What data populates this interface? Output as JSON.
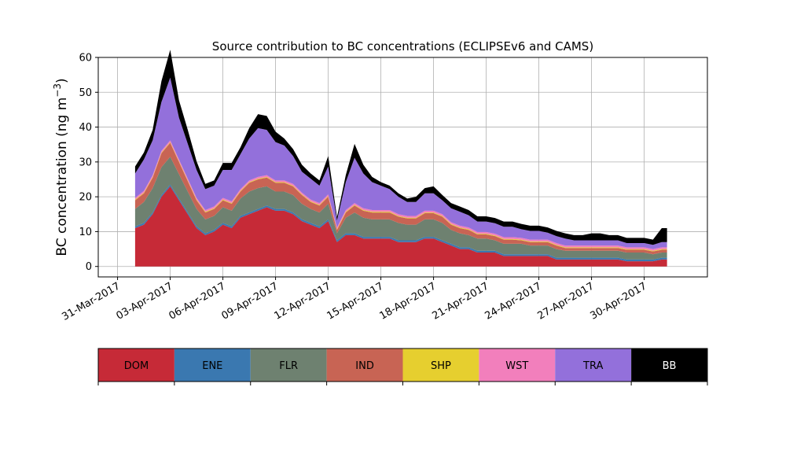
{
  "chart_data": {
    "type": "area",
    "stacked": true,
    "title": "Source contribution to BC concentrations (ECLIPSEv6 and CAMS)",
    "xlabel": "",
    "ylabel": "BC concentration (ng m",
    "ylabel_superscript": "−3",
    "ylabel_suffix": ")",
    "ylim": [
      -3,
      60
    ],
    "xlim": [
      -1.1,
      33.6
    ],
    "grid": true,
    "yticks": [
      0,
      10,
      20,
      30,
      40,
      50,
      60
    ],
    "xticks": [
      {
        "day": 0,
        "label": "31-Mar-2017"
      },
      {
        "day": 3,
        "label": "03-Apr-2017"
      },
      {
        "day": 6,
        "label": "06-Apr-2017"
      },
      {
        "day": 9,
        "label": "09-Apr-2017"
      },
      {
        "day": 12,
        "label": "12-Apr-2017"
      },
      {
        "day": 15,
        "label": "15-Apr-2017"
      },
      {
        "day": 18,
        "label": "18-Apr-2017"
      },
      {
        "day": 21,
        "label": "21-Apr-2017"
      },
      {
        "day": 24,
        "label": "24-Apr-2017"
      },
      {
        "day": 27,
        "label": "27-Apr-2017"
      },
      {
        "day": 30,
        "label": "30-Apr-2017"
      }
    ],
    "x_days": [
      1.0,
      1.5,
      2.0,
      2.5,
      3.0,
      3.5,
      4.0,
      4.5,
      5.0,
      5.5,
      6.0,
      6.5,
      7.0,
      7.5,
      8.0,
      8.5,
      9.0,
      9.5,
      10.0,
      10.5,
      11.0,
      11.5,
      12.0,
      12.5,
      13.0,
      13.5,
      14.0,
      14.5,
      15.0,
      15.5,
      16.0,
      16.5,
      17.0,
      17.5,
      18.0,
      18.5,
      19.0,
      19.5,
      20.0,
      20.5,
      21.0,
      21.5,
      22.0,
      22.5,
      23.0,
      23.5,
      24.0,
      24.5,
      25.0,
      25.5,
      26.0,
      26.5,
      27.0,
      27.5,
      28.0,
      28.5,
      29.0,
      29.5,
      30.0,
      30.5,
      31.0,
      31.3
    ],
    "series": [
      {
        "name": "DOM",
        "color": "#c62a37",
        "values": [
          11,
          12,
          15,
          20,
          23,
          19,
          15,
          11,
          9,
          10,
          12,
          11,
          14,
          15,
          16,
          17,
          16,
          16,
          15,
          13,
          12,
          11,
          13,
          7,
          9,
          9,
          8,
          8,
          8,
          8,
          7,
          7,
          7,
          8,
          8,
          7,
          6,
          5,
          5,
          4,
          4,
          4,
          3,
          3,
          3,
          3,
          3,
          3,
          2,
          2,
          2,
          2,
          2,
          2,
          2,
          2,
          1.5,
          1.5,
          1.5,
          1.5,
          2,
          2
        ]
      },
      {
        "name": "ENE",
        "color": "#3a78b0",
        "values": [
          0.5,
          0.5,
          0.5,
          0.5,
          0.5,
          0.5,
          0.5,
          0.5,
          0.5,
          0.5,
          0.5,
          0.5,
          0.5,
          0.5,
          0.5,
          0.5,
          0.5,
          0.5,
          0.5,
          0.5,
          0.5,
          0.5,
          0.5,
          0.5,
          0.5,
          0.5,
          0.5,
          0.5,
          0.5,
          0.5,
          0.5,
          0.5,
          0.5,
          0.5,
          0.5,
          0.5,
          0.5,
          0.5,
          0.5,
          0.5,
          0.5,
          0.5,
          0.5,
          0.5,
          0.5,
          0.5,
          0.5,
          0.5,
          0.5,
          0.5,
          0.5,
          0.5,
          0.5,
          0.5,
          0.5,
          0.5,
          0.5,
          0.5,
          0.5,
          0.5,
          0.5,
          0.5
        ]
      },
      {
        "name": "FLR",
        "color": "#6e8170",
        "values": [
          5,
          6,
          7,
          8,
          8,
          7,
          6,
          5,
          4,
          4,
          4.5,
          4.5,
          5,
          6,
          6,
          5.5,
          5,
          5,
          5,
          4.5,
          4,
          4,
          4.5,
          2,
          4.5,
          6,
          5.5,
          5,
          5,
          5,
          5,
          4.5,
          4.5,
          5,
          5,
          5,
          4,
          4,
          3.5,
          3.5,
          3.5,
          3,
          3,
          3,
          3,
          2.5,
          2.5,
          2.5,
          2.5,
          2,
          2,
          2,
          2,
          2,
          2,
          2,
          2,
          2,
          2,
          1.5,
          1.5,
          1.5
        ]
      },
      {
        "name": "IND",
        "color": "#c86454",
        "values": [
          2.5,
          2.5,
          3,
          4,
          4,
          3.5,
          3,
          2.5,
          2,
          2,
          2,
          2,
          2,
          2.5,
          2.5,
          2.5,
          2.5,
          2.5,
          2.5,
          2.5,
          2,
          2,
          2,
          1,
          1.5,
          2,
          2,
          2,
          2,
          2,
          1.8,
          1.8,
          1.8,
          1.8,
          1.8,
          1.8,
          1.5,
          1.5,
          1.5,
          1.2,
          1.2,
          1.2,
          1.2,
          1.2,
          1,
          1,
          1,
          1,
          1,
          0.8,
          0.8,
          0.8,
          0.8,
          0.8,
          0.8,
          0.8,
          0.8,
          0.8,
          0.8,
          0.8,
          0.8,
          0.8
        ]
      },
      {
        "name": "SHP",
        "color": "#e6cf2f",
        "values": [
          0.2,
          0.2,
          0.2,
          0.2,
          0.2,
          0.2,
          0.2,
          0.2,
          0.2,
          0.2,
          0.2,
          0.2,
          0.2,
          0.2,
          0.2,
          0.2,
          0.2,
          0.2,
          0.2,
          0.2,
          0.2,
          0.2,
          0.2,
          0.2,
          0.2,
          0.2,
          0.2,
          0.2,
          0.2,
          0.2,
          0.2,
          0.2,
          0.2,
          0.2,
          0.2,
          0.2,
          0.2,
          0.2,
          0.2,
          0.2,
          0.2,
          0.2,
          0.2,
          0.2,
          0.2,
          0.2,
          0.2,
          0.2,
          0.2,
          0.2,
          0.2,
          0.2,
          0.2,
          0.2,
          0.2,
          0.2,
          0.2,
          0.2,
          0.2,
          0.2,
          0.2,
          0.2
        ]
      },
      {
        "name": "WST",
        "color": "#f27fbc",
        "values": [
          0.5,
          0.5,
          0.5,
          0.5,
          0.5,
          0.5,
          0.5,
          0.5,
          0.5,
          0.5,
          0.5,
          0.5,
          0.5,
          0.5,
          0.5,
          0.5,
          0.5,
          0.5,
          0.5,
          0.5,
          0.5,
          0.5,
          0.5,
          0.5,
          0.5,
          0.5,
          0.5,
          0.5,
          0.5,
          0.5,
          0.5,
          0.5,
          0.5,
          0.5,
          0.5,
          0.5,
          0.5,
          0.5,
          0.5,
          0.5,
          0.5,
          0.5,
          0.5,
          0.5,
          0.5,
          0.5,
          0.5,
          0.5,
          0.5,
          0.5,
          0.5,
          0.5,
          0.5,
          0.5,
          0.5,
          0.5,
          0.5,
          0.5,
          0.5,
          0.5,
          0.5,
          0.5
        ]
      },
      {
        "name": "TRA",
        "color": "#9370db",
        "values": [
          7,
          9,
          10,
          14,
          18,
          12,
          10,
          8,
          6,
          6,
          8,
          9,
          10,
          12,
          14,
          13,
          11,
          10,
          8,
          6,
          6,
          5,
          8,
          2,
          8,
          13,
          10,
          8,
          7,
          6,
          5,
          4,
          4,
          5,
          5,
          4,
          4,
          4,
          3.5,
          3,
          3,
          3,
          3,
          3,
          2.5,
          2.5,
          2.5,
          2,
          2,
          2,
          1.5,
          1.5,
          1.5,
          1.5,
          1.5,
          1.5,
          1.2,
          1.2,
          1.2,
          1.2,
          1.5,
          1.5
        ]
      },
      {
        "name": "BB",
        "color": "#000000",
        "values": [
          2,
          2,
          3,
          6,
          8,
          5,
          4,
          2.5,
          1.5,
          1.5,
          2,
          2,
          2,
          3,
          4,
          4,
          3,
          2,
          2,
          2,
          1.5,
          1.5,
          3,
          1,
          2,
          4,
          2.5,
          1.5,
          1,
          1,
          1,
          1,
          1.5,
          1.5,
          2,
          1.5,
          1.5,
          1.5,
          1.5,
          1.5,
          1.5,
          1.5,
          1.5,
          1.5,
          1.5,
          1.5,
          1.5,
          1.5,
          1.5,
          1.5,
          1.5,
          1.5,
          2,
          2,
          1.5,
          1.5,
          1.5,
          1.5,
          1.5,
          1.5,
          4,
          4
        ]
      }
    ],
    "legend": [
      "DOM",
      "ENE",
      "FLR",
      "IND",
      "SHP",
      "WST",
      "TRA",
      "BB"
    ],
    "legend_text_colors": [
      "#000000",
      "#000000",
      "#000000",
      "#000000",
      "#000000",
      "#000000",
      "#000000",
      "#ffffff"
    ]
  }
}
